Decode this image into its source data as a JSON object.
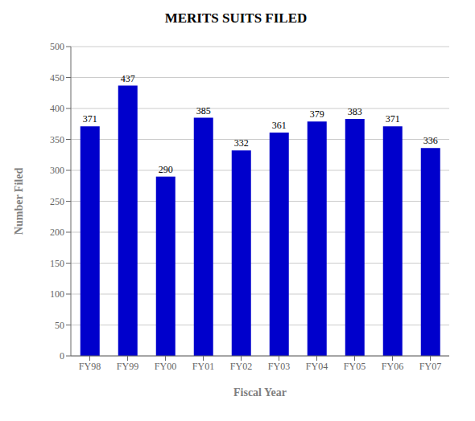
{
  "chart_data": {
    "type": "bar",
    "title": "MERITS SUITS FILED",
    "xlabel": "Fiscal Year",
    "ylabel": "Number Filed",
    "categories": [
      "FY98",
      "FY99",
      "FY00",
      "FY01",
      "FY02",
      "FY03",
      "FY04",
      "FY05",
      "FY06",
      "FY07"
    ],
    "values": [
      371,
      437,
      290,
      385,
      332,
      361,
      379,
      383,
      371,
      336
    ],
    "color": "#0000CC",
    "ylim": [
      0,
      500
    ],
    "yticks": [
      0,
      50,
      100,
      150,
      200,
      250,
      300,
      350,
      400,
      450,
      500
    ],
    "grid": true,
    "data_labels": true
  }
}
